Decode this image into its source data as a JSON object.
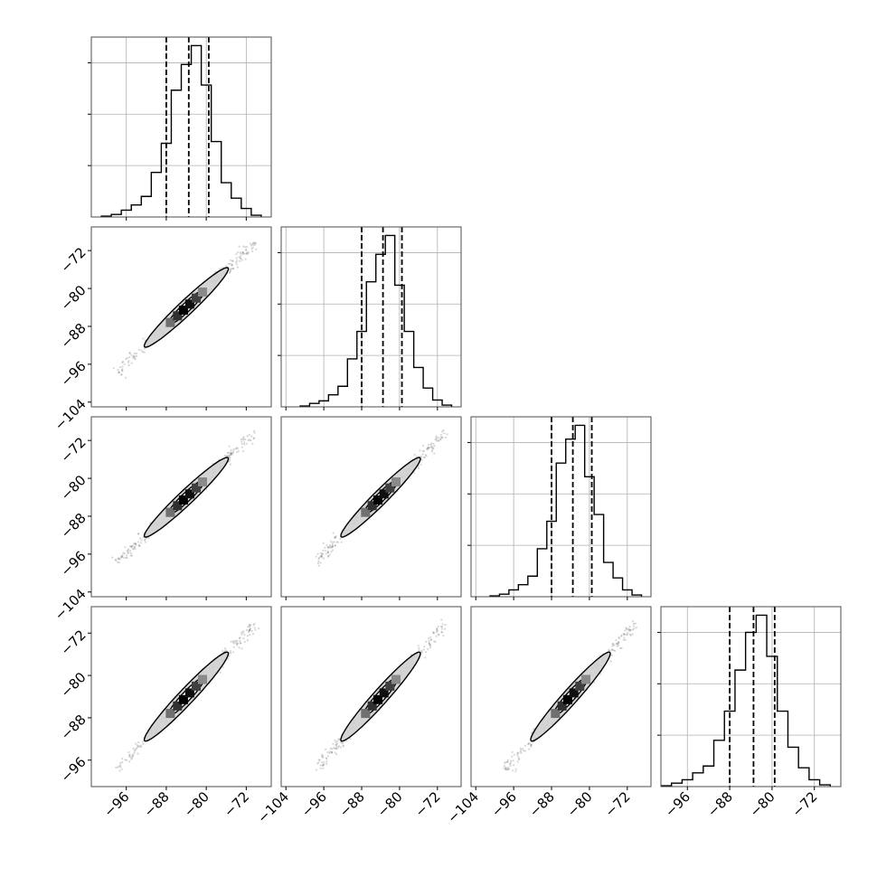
{
  "chart_data": {
    "type": "corner",
    "params": 4,
    "grid": true,
    "colors": {
      "line": "#000000",
      "grid": "#b0b0b0",
      "axes": "#4d4d4d",
      "fill_inner": "#ffffff",
      "fill_outer": "#d0d0d0",
      "samples": "#6e6e6e"
    },
    "quantile_lines": [
      -88,
      -83.5,
      -79.5
    ],
    "axis_ranges": [
      [
        -103,
        -67
      ],
      [
        -105,
        -67
      ],
      [
        -105,
        -67
      ],
      [
        -101,
        -67
      ]
    ],
    "tick_values": [
      [
        -96,
        -88,
        -80,
        -72
      ],
      [
        -104,
        -96,
        -88,
        -80,
        -72
      ],
      [
        -104,
        -96,
        -88,
        -80,
        -72
      ],
      [
        -96,
        -88,
        -80,
        -72
      ]
    ],
    "tick_labels": [
      [
        "−96",
        "−88",
        "−80",
        "−72"
      ],
      [
        "−104",
        "−96",
        "−88",
        "−80",
        "−72"
      ],
      [
        "−104",
        "−96",
        "−88",
        "−80",
        "−72"
      ],
      [
        "−96",
        "−88",
        "−80",
        "−72"
      ]
    ],
    "row_tick_values": [
      [],
      [
        -104,
        -96,
        -88,
        -80,
        -72
      ],
      [
        -104,
        -96,
        -88,
        -80,
        -72
      ],
      [
        -96,
        -88,
        -80,
        -72
      ]
    ],
    "row_tick_labels": [
      [],
      [
        "−104",
        "−96",
        "−88",
        "−80",
        "−72"
      ],
      [
        "−104",
        "−96",
        "−88",
        "−80",
        "−72"
      ],
      [
        "−96",
        "−88",
        "−80",
        "−72"
      ]
    ],
    "histogram_bins": [
      -101,
      -99,
      -97,
      -95,
      -93,
      -91,
      -89,
      -87,
      -85,
      -83,
      -81,
      -79,
      -77,
      -75,
      -73,
      -71,
      -69
    ],
    "histograms": [
      [
        0.005,
        0.015,
        0.04,
        0.07,
        0.12,
        0.26,
        0.43,
        0.74,
        0.89,
        1.0,
        0.77,
        0.44,
        0.2,
        0.11,
        0.05,
        0.01
      ],
      [
        0.005,
        0.02,
        0.035,
        0.07,
        0.12,
        0.28,
        0.44,
        0.73,
        0.89,
        1.0,
        0.71,
        0.44,
        0.23,
        0.11,
        0.04,
        0.01
      ],
      [
        0.005,
        0.015,
        0.04,
        0.07,
        0.12,
        0.28,
        0.44,
        0.78,
        0.92,
        1.0,
        0.7,
        0.48,
        0.2,
        0.11,
        0.04,
        0.01
      ],
      [
        0.005,
        0.02,
        0.04,
        0.08,
        0.12,
        0.27,
        0.44,
        0.68,
        0.9,
        1.0,
        0.76,
        0.44,
        0.23,
        0.11,
        0.04,
        0.01
      ]
    ],
    "hist_ymax": 1.05,
    "hist_yticks": [
      0.3,
      0.6,
      0.9
    ],
    "density_axis": {
      "x0": -84,
      "y0": -84,
      "half_length": 19.5,
      "spread": 0.55
    },
    "contours": [
      {
        "level": "outer",
        "half_length": 11.8,
        "half_width": 1.5
      },
      {
        "level": "inner",
        "half_length": 5.0,
        "half_width": 0.9
      }
    ],
    "density_squares": [
      {
        "offset": -4.5,
        "shade": "#707070"
      },
      {
        "offset": -2.5,
        "shade": "#303030"
      },
      {
        "offset": -0.8,
        "shade": "#000000"
      },
      {
        "offset": 1.0,
        "shade": "#101010"
      },
      {
        "offset": 2.8,
        "shade": "#404040"
      },
      {
        "offset": 4.6,
        "shade": "#8a8a8a"
      }
    ]
  }
}
